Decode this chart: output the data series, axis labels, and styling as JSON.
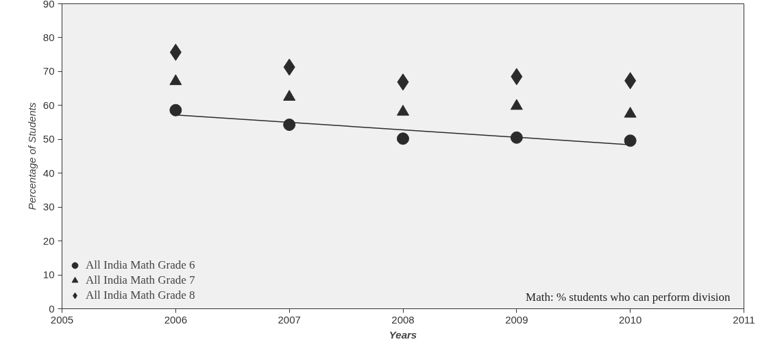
{
  "chart_data": {
    "type": "scatter",
    "xlabel": "Years",
    "ylabel": "Percentage of Students",
    "x": [
      2006,
      2007,
      2008,
      2009,
      2010
    ],
    "series": [
      {
        "name": "All India Math Grade 6",
        "color": "#2b2b2b",
        "marker": "circle",
        "values": [
          58.6,
          54.3,
          50.2,
          50.5,
          49.6
        ]
      },
      {
        "name": "All India Math Grade 7",
        "color": "#2b2b2b",
        "marker": "triangle",
        "values": [
          67.1,
          62.5,
          58.1,
          59.8,
          57.5
        ]
      },
      {
        "name": "All India Math Grade 8",
        "color": "#2b2b2b",
        "marker": "diamond",
        "values": [
          75.7,
          71.3,
          66.9,
          68.5,
          67.3
        ]
      },
      {
        "type": "line",
        "color": "#2b2b2b",
        "x": [
          2006,
          2010
        ],
        "values": [
          57.2,
          48.4
        ]
      }
    ],
    "xlim": [
      2005,
      2011
    ],
    "xticks": [
      2005,
      2006,
      2007,
      2008,
      2009,
      2010,
      2011
    ],
    "ylim": [
      0,
      90
    ],
    "yticks": [
      0,
      10,
      20,
      30,
      40,
      50,
      60,
      70,
      80,
      90
    ],
    "grid": false,
    "legend": "bottom left",
    "annotations": [
      "Math: % students who can perform division"
    ]
  }
}
